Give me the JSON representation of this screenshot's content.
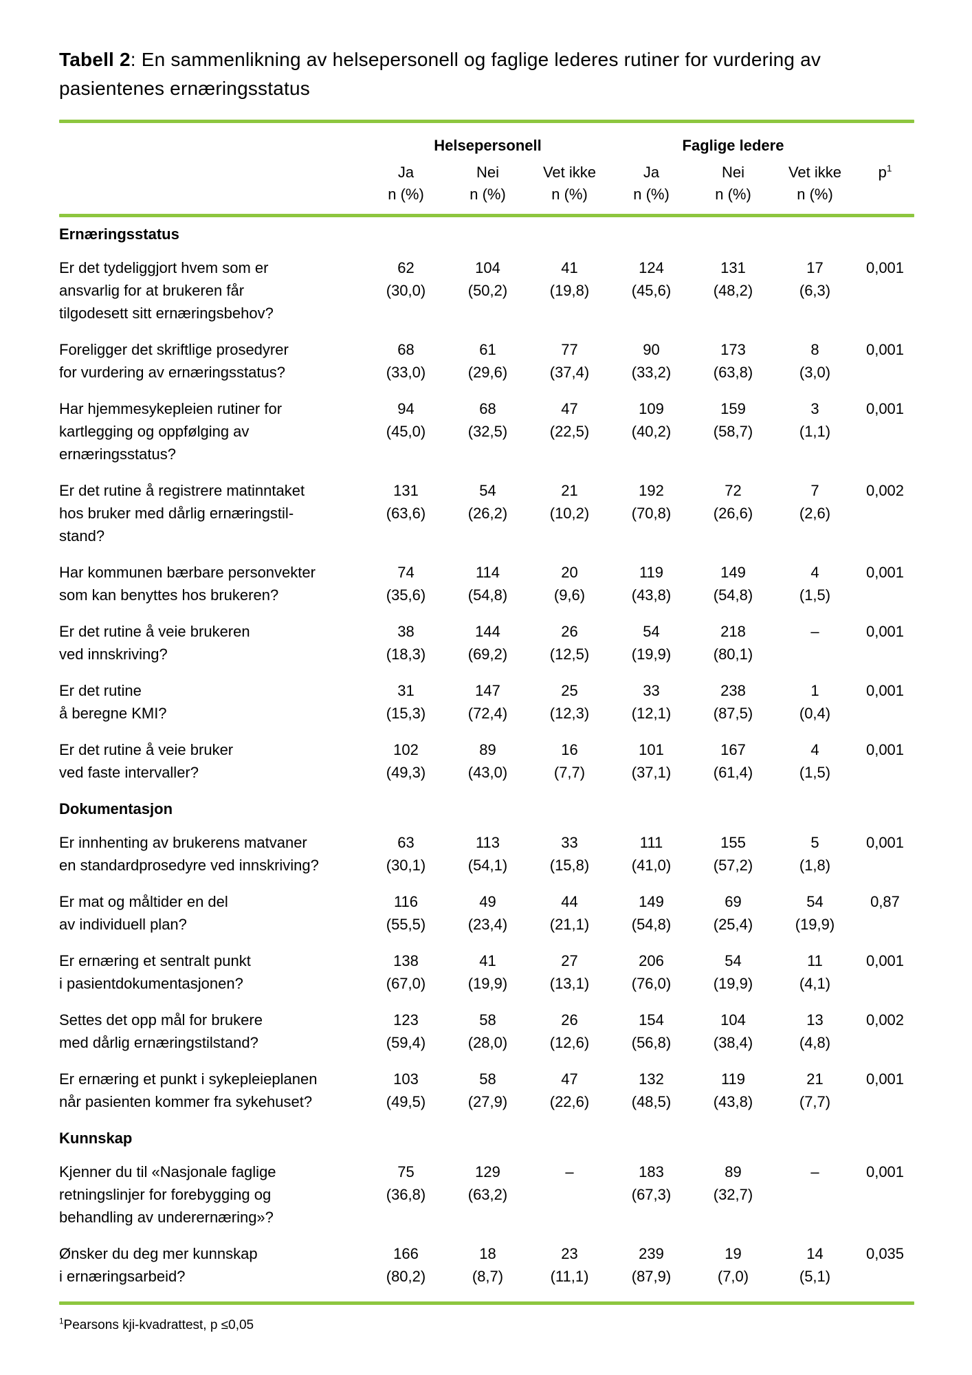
{
  "accent_color": "#8dc63f",
  "title": {
    "bold": "Tabell 2",
    "rest": ": En sammenlikning av helsepersonell og faglige lederes rutiner for vurdering av pasientenes ernæringsstatus"
  },
  "header": {
    "groups": [
      "Helsepersonell",
      "Faglige ledere"
    ],
    "columns": [
      "Ja",
      "Nei",
      "Vet ikke",
      "Ja",
      "Nei",
      "Vet ikke"
    ],
    "subheader": "n (%)",
    "p_label": "p",
    "p_superscript": "1"
  },
  "sections": [
    {
      "label": "Ernæringsstatus",
      "rows": [
        {
          "question_lines": [
            "Er det tydeliggjort hvem som er",
            "ansvarlig for at brukeren får",
            "tilgodesett sitt ernæringsbehov?"
          ],
          "cells": [
            {
              "n": "62",
              "pct": "(30,0)"
            },
            {
              "n": "104",
              "pct": "(50,2)"
            },
            {
              "n": "41",
              "pct": "(19,8)"
            },
            {
              "n": "124",
              "pct": "(45,6)"
            },
            {
              "n": "131",
              "pct": "(48,2)"
            },
            {
              "n": "17",
              "pct": "(6,3)"
            }
          ],
          "p": "0,001"
        },
        {
          "question_lines": [
            "Foreligger det skriftlige prosedyrer",
            "for vurdering av ernæringsstatus?"
          ],
          "cells": [
            {
              "n": "68",
              "pct": "(33,0)"
            },
            {
              "n": "61",
              "pct": "(29,6)"
            },
            {
              "n": "77",
              "pct": "(37,4)"
            },
            {
              "n": "90",
              "pct": "(33,2)"
            },
            {
              "n": "173",
              "pct": "(63,8)"
            },
            {
              "n": "8",
              "pct": "(3,0)"
            }
          ],
          "p": "0,001"
        },
        {
          "question_lines": [
            "Har hjemmesykepleien rutiner for",
            "kartlegging og oppfølging av",
            "ernæringsstatus?"
          ],
          "cells": [
            {
              "n": "94",
              "pct": "(45,0)"
            },
            {
              "n": "68",
              "pct": "(32,5)"
            },
            {
              "n": "47",
              "pct": "(22,5)"
            },
            {
              "n": "109",
              "pct": "(40,2)"
            },
            {
              "n": "159",
              "pct": "(58,7)"
            },
            {
              "n": "3",
              "pct": "(1,1)"
            }
          ],
          "p": "0,001"
        },
        {
          "question_lines": [
            "Er det rutine å registrere matinntaket",
            "hos bruker med dårlig ernæringstil-",
            "stand?"
          ],
          "cells": [
            {
              "n": "131",
              "pct": "(63,6)"
            },
            {
              "n": "54",
              "pct": "(26,2)"
            },
            {
              "n": "21",
              "pct": "(10,2)"
            },
            {
              "n": "192",
              "pct": "(70,8)"
            },
            {
              "n": "72",
              "pct": "(26,6)"
            },
            {
              "n": "7",
              "pct": "(2,6)"
            }
          ],
          "p": "0,002"
        },
        {
          "question_lines": [
            "Har kommunen bærbare personvekter",
            "som kan benyttes hos brukeren?"
          ],
          "cells": [
            {
              "n": "74",
              "pct": "(35,6)"
            },
            {
              "n": "114",
              "pct": "(54,8)"
            },
            {
              "n": "20",
              "pct": "(9,6)"
            },
            {
              "n": "119",
              "pct": "(43,8)"
            },
            {
              "n": "149",
              "pct": "(54,8)"
            },
            {
              "n": "4",
              "pct": "(1,5)"
            }
          ],
          "p": "0,001"
        },
        {
          "question_lines": [
            "Er det rutine å veie brukeren",
            "ved innskriving?"
          ],
          "cells": [
            {
              "n": "38",
              "pct": "(18,3)"
            },
            {
              "n": "144",
              "pct": "(69,2)"
            },
            {
              "n": "26",
              "pct": "(12,5)"
            },
            {
              "n": "54",
              "pct": "(19,9)"
            },
            {
              "n": "218",
              "pct": "(80,1)"
            },
            {
              "n": "–",
              "pct": ""
            }
          ],
          "p": "0,001"
        },
        {
          "question_lines": [
            "Er det rutine",
            "å beregne KMI?"
          ],
          "cells": [
            {
              "n": "31",
              "pct": "(15,3)"
            },
            {
              "n": "147",
              "pct": "(72,4)"
            },
            {
              "n": "25",
              "pct": "(12,3)"
            },
            {
              "n": "33",
              "pct": "(12,1)"
            },
            {
              "n": "238",
              "pct": "(87,5)"
            },
            {
              "n": "1",
              "pct": "(0,4)"
            }
          ],
          "p": "0,001"
        },
        {
          "question_lines": [
            "Er det rutine å veie bruker",
            "ved faste intervaller?"
          ],
          "cells": [
            {
              "n": "102",
              "pct": "(49,3)"
            },
            {
              "n": "89",
              "pct": "(43,0)"
            },
            {
              "n": "16",
              "pct": "(7,7)"
            },
            {
              "n": "101",
              "pct": "(37,1)"
            },
            {
              "n": "167",
              "pct": "(61,4)"
            },
            {
              "n": "4",
              "pct": "(1,5)"
            }
          ],
          "p": "0,001"
        }
      ]
    },
    {
      "label": "Dokumentasjon",
      "rows": [
        {
          "question_lines": [
            "Er innhenting av brukerens matvaner",
            "en standardprosedyre ved innskriving?"
          ],
          "cells": [
            {
              "n": "63",
              "pct": "(30,1)"
            },
            {
              "n": "113",
              "pct": "(54,1)"
            },
            {
              "n": "33",
              "pct": "(15,8)"
            },
            {
              "n": "111",
              "pct": "(41,0)"
            },
            {
              "n": "155",
              "pct": "(57,2)"
            },
            {
              "n": "5",
              "pct": "(1,8)"
            }
          ],
          "p": "0,001"
        },
        {
          "question_lines": [
            "Er mat og måltider en del",
            "av individuell plan?"
          ],
          "cells": [
            {
              "n": "116",
              "pct": "(55,5)"
            },
            {
              "n": "49",
              "pct": "(23,4)"
            },
            {
              "n": "44",
              "pct": "(21,1)"
            },
            {
              "n": "149",
              "pct": "(54,8)"
            },
            {
              "n": "69",
              "pct": "(25,4)"
            },
            {
              "n": "54",
              "pct": "(19,9)"
            }
          ],
          "p": "0,87"
        },
        {
          "question_lines": [
            "Er ernæring et sentralt punkt",
            "i pasientdokumentasjonen?"
          ],
          "cells": [
            {
              "n": "138",
              "pct": "(67,0)"
            },
            {
              "n": "41",
              "pct": "(19,9)"
            },
            {
              "n": "27",
              "pct": "(13,1)"
            },
            {
              "n": "206",
              "pct": "(76,0)"
            },
            {
              "n": "54",
              "pct": "(19,9)"
            },
            {
              "n": "11",
              "pct": "(4,1)"
            }
          ],
          "p": "0,001"
        },
        {
          "question_lines": [
            "Settes det opp mål for brukere",
            "med dårlig ernæringstilstand?"
          ],
          "cells": [
            {
              "n": "123",
              "pct": "(59,4)"
            },
            {
              "n": "58",
              "pct": "(28,0)"
            },
            {
              "n": "26",
              "pct": "(12,6)"
            },
            {
              "n": "154",
              "pct": "(56,8)"
            },
            {
              "n": "104",
              "pct": "(38,4)"
            },
            {
              "n": "13",
              "pct": "(4,8)"
            }
          ],
          "p": "0,002"
        },
        {
          "question_lines": [
            "Er ernæring et punkt i sykepleieplanen",
            "når pasienten kommer fra sykehuset?"
          ],
          "cells": [
            {
              "n": "103",
              "pct": "(49,5)"
            },
            {
              "n": "58",
              "pct": "(27,9)"
            },
            {
              "n": "47",
              "pct": "(22,6)"
            },
            {
              "n": "132",
              "pct": "(48,5)"
            },
            {
              "n": "119",
              "pct": "(43,8)"
            },
            {
              "n": "21",
              "pct": "(7,7)"
            }
          ],
          "p": "0,001"
        }
      ]
    },
    {
      "label": "Kunnskap",
      "rows": [
        {
          "question_lines": [
            "Kjenner du til «Nasjonale faglige",
            "retningslinjer for forebygging og",
            "behandling av underernæring»?"
          ],
          "cells": [
            {
              "n": "75",
              "pct": "(36,8)"
            },
            {
              "n": "129",
              "pct": "(63,2)"
            },
            {
              "n": "–",
              "pct": ""
            },
            {
              "n": "183",
              "pct": "(67,3)"
            },
            {
              "n": "89",
              "pct": "(32,7)"
            },
            {
              "n": "–",
              "pct": ""
            }
          ],
          "p": "0,001"
        },
        {
          "question_lines": [
            "Ønsker du deg mer kunnskap",
            "i ernæringsarbeid?"
          ],
          "cells": [
            {
              "n": "166",
              "pct": "(80,2)"
            },
            {
              "n": "18",
              "pct": "(8,7)"
            },
            {
              "n": "23",
              "pct": "(11,1)"
            },
            {
              "n": "239",
              "pct": "(87,9)"
            },
            {
              "n": "19",
              "pct": "(7,0)"
            },
            {
              "n": "14",
              "pct": "(5,1)"
            }
          ],
          "p": "0,035"
        }
      ]
    }
  ],
  "footnote": {
    "superscript": "1",
    "text": "Pearsons kji-kvadrattest, p ≤0,05"
  }
}
